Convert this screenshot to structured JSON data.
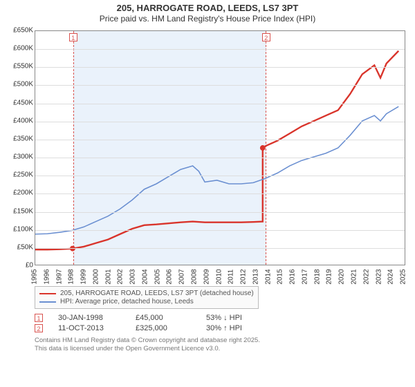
{
  "title": "205, HARROGATE ROAD, LEEDS, LS7 3PT",
  "subtitle": "Price paid vs. HM Land Registry's House Price Index (HPI)",
  "chart": {
    "type": "line",
    "x_axis": {
      "min": 1995,
      "max": 2025.5,
      "ticks": [
        1995,
        1996,
        1997,
        1998,
        1999,
        2000,
        2001,
        2002,
        2003,
        2004,
        2005,
        2006,
        2007,
        2008,
        2009,
        2010,
        2011,
        2012,
        2013,
        2014,
        2015,
        2016,
        2017,
        2018,
        2019,
        2020,
        2021,
        2022,
        2023,
        2024,
        2025
      ]
    },
    "y_axis": {
      "min": 0,
      "max": 650000,
      "ticks": [
        0,
        50000,
        100000,
        150000,
        200000,
        250000,
        300000,
        350000,
        400000,
        450000,
        500000,
        550000,
        600000,
        650000
      ],
      "tick_labels": [
        "£0",
        "£50K",
        "£100K",
        "£150K",
        "£200K",
        "£250K",
        "£300K",
        "£350K",
        "£400K",
        "£450K",
        "£500K",
        "£550K",
        "£600K",
        "£650K"
      ]
    },
    "background_color": "#ffffff",
    "grid_color": "#dddddd",
    "band_color": "#eaf2fb",
    "band_border_color": "#d9534f",
    "sale_band": {
      "start": 1998.08,
      "end": 2013.78
    },
    "series": [
      {
        "name": "205, HARROGATE ROAD, LEEDS, LS7 3PT (detached house)",
        "color": "#d9342b",
        "line_width": 2.4,
        "points": [
          [
            1995,
            42000
          ],
          [
            1996,
            42000
          ],
          [
            1997,
            43000
          ],
          [
            1998.08,
            45000
          ],
          [
            1999,
            50000
          ],
          [
            2000,
            60000
          ],
          [
            2001,
            70000
          ],
          [
            2002,
            85000
          ],
          [
            2003,
            100000
          ],
          [
            2004,
            110000
          ],
          [
            2005,
            112000
          ],
          [
            2006,
            115000
          ],
          [
            2007,
            118000
          ],
          [
            2008,
            120000
          ],
          [
            2009,
            118000
          ],
          [
            2010,
            118000
          ],
          [
            2011,
            118000
          ],
          [
            2012,
            118000
          ],
          [
            2013,
            119000
          ],
          [
            2013.78,
            120000
          ],
          [
            2013.78,
            325000
          ],
          [
            2014,
            330000
          ],
          [
            2015,
            345000
          ],
          [
            2016,
            365000
          ],
          [
            2017,
            385000
          ],
          [
            2018,
            400000
          ],
          [
            2019,
            415000
          ],
          [
            2020,
            430000
          ],
          [
            2021,
            475000
          ],
          [
            2022,
            530000
          ],
          [
            2023,
            555000
          ],
          [
            2023.5,
            520000
          ],
          [
            2024,
            560000
          ],
          [
            2025,
            595000
          ]
        ],
        "markers": [
          {
            "x": 1998.08,
            "y": 45000
          },
          {
            "x": 2013.78,
            "y": 325000
          }
        ]
      },
      {
        "name": "HPI: Average price, detached house, Leeds",
        "color": "#6a8fd1",
        "line_width": 1.6,
        "points": [
          [
            1995,
            85000
          ],
          [
            1996,
            86000
          ],
          [
            1997,
            90000
          ],
          [
            1998,
            95000
          ],
          [
            1999,
            105000
          ],
          [
            2000,
            120000
          ],
          [
            2001,
            135000
          ],
          [
            2002,
            155000
          ],
          [
            2003,
            180000
          ],
          [
            2004,
            210000
          ],
          [
            2005,
            225000
          ],
          [
            2006,
            245000
          ],
          [
            2007,
            265000
          ],
          [
            2008,
            275000
          ],
          [
            2008.5,
            260000
          ],
          [
            2009,
            230000
          ],
          [
            2010,
            235000
          ],
          [
            2011,
            225000
          ],
          [
            2012,
            225000
          ],
          [
            2013,
            228000
          ],
          [
            2014,
            240000
          ],
          [
            2015,
            255000
          ],
          [
            2016,
            275000
          ],
          [
            2017,
            290000
          ],
          [
            2018,
            300000
          ],
          [
            2019,
            310000
          ],
          [
            2020,
            325000
          ],
          [
            2021,
            360000
          ],
          [
            2022,
            400000
          ],
          [
            2023,
            415000
          ],
          [
            2023.5,
            400000
          ],
          [
            2024,
            420000
          ],
          [
            2025,
            440000
          ]
        ]
      }
    ],
    "sale_markers": [
      {
        "num": "1",
        "x": 1998.08
      },
      {
        "num": "2",
        "x": 2013.78
      }
    ]
  },
  "events": [
    {
      "num": "1",
      "date": "30-JAN-1998",
      "price": "£45,000",
      "diff": "53% ↓ HPI"
    },
    {
      "num": "2",
      "date": "11-OCT-2013",
      "price": "£325,000",
      "diff": "30% ↑ HPI"
    }
  ],
  "footnote": {
    "l1": "Contains HM Land Registry data © Crown copyright and database right 2025.",
    "l2": "This data is licensed under the Open Government Licence v3.0."
  }
}
